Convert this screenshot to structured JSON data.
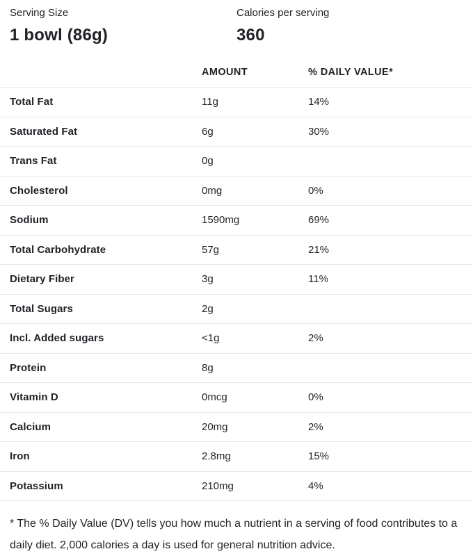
{
  "summary": {
    "serving_size_label": "Serving Size",
    "serving_size_value": "1 bowl (86g)",
    "calories_label": "Calories per serving",
    "calories_value": "360"
  },
  "table": {
    "columns": {
      "amount": "AMOUNT",
      "daily_value": "% DAILY VALUE*"
    },
    "rows": [
      {
        "nutrient": "Total Fat",
        "amount": "11g",
        "daily_value": "14%"
      },
      {
        "nutrient": "Saturated Fat",
        "amount": "6g",
        "daily_value": "30%"
      },
      {
        "nutrient": "Trans Fat",
        "amount": "0g",
        "daily_value": ""
      },
      {
        "nutrient": "Cholesterol",
        "amount": "0mg",
        "daily_value": "0%"
      },
      {
        "nutrient": "Sodium",
        "amount": "1590mg",
        "daily_value": "69%"
      },
      {
        "nutrient": "Total Carbohydrate",
        "amount": "57g",
        "daily_value": "21%"
      },
      {
        "nutrient": "Dietary Fiber",
        "amount": "3g",
        "daily_value": "11%"
      },
      {
        "nutrient": "Total Sugars",
        "amount": "2g",
        "daily_value": ""
      },
      {
        "nutrient": "Incl. Added sugars",
        "amount": "<1g",
        "daily_value": "2%"
      },
      {
        "nutrient": "Protein",
        "amount": "8g",
        "daily_value": ""
      },
      {
        "nutrient": "Vitamin D",
        "amount": "0mcg",
        "daily_value": "0%"
      },
      {
        "nutrient": "Calcium",
        "amount": "20mg",
        "daily_value": "2%"
      },
      {
        "nutrient": "Iron",
        "amount": "2.8mg",
        "daily_value": "15%"
      },
      {
        "nutrient": "Potassium",
        "amount": "210mg",
        "daily_value": "4%"
      }
    ]
  },
  "footnote": "* The % Daily Value (DV) tells you how much a nutrient in a serving of food contributes to a daily diet. 2,000 calories a day is used for general nutrition advice.",
  "colors": {
    "text": "#1f2126",
    "divider": "#e7e7ea",
    "background": "#ffffff"
  }
}
